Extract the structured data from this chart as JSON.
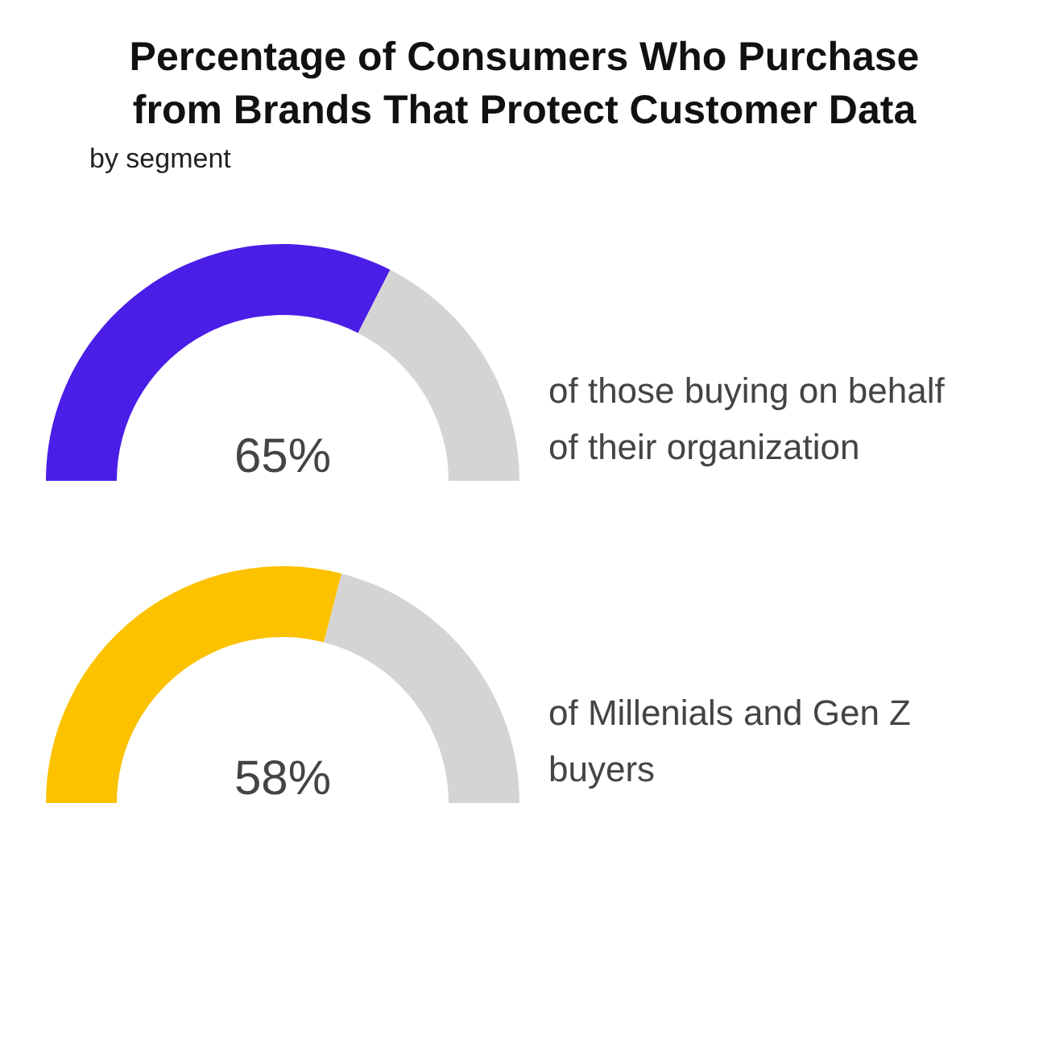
{
  "chart_data": [
    {
      "type": "donut",
      "title": "Percentage of Consumers Who Purchase from Brands That Protect Customer Data",
      "subtitle": "by segment",
      "categories": [
        null,
        null
      ],
      "values": [
        65,
        35
      ],
      "colors": [
        "#4b1ee8",
        "#d4d4d4"
      ],
      "value_labels": [
        "65%",
        null
      ],
      "annotations": [
        "of those buying on behalf of their organization"
      ]
    },
    {
      "type": "donut",
      "categories": [
        null,
        null
      ],
      "values": [
        58,
        42
      ],
      "colors": [
        "#fcc200",
        "#d4d4d4"
      ],
      "value_labels": [
        "58%",
        null
      ],
      "annotations": [
        "of Millenials and Gen Z buyers"
      ]
    }
  ]
}
